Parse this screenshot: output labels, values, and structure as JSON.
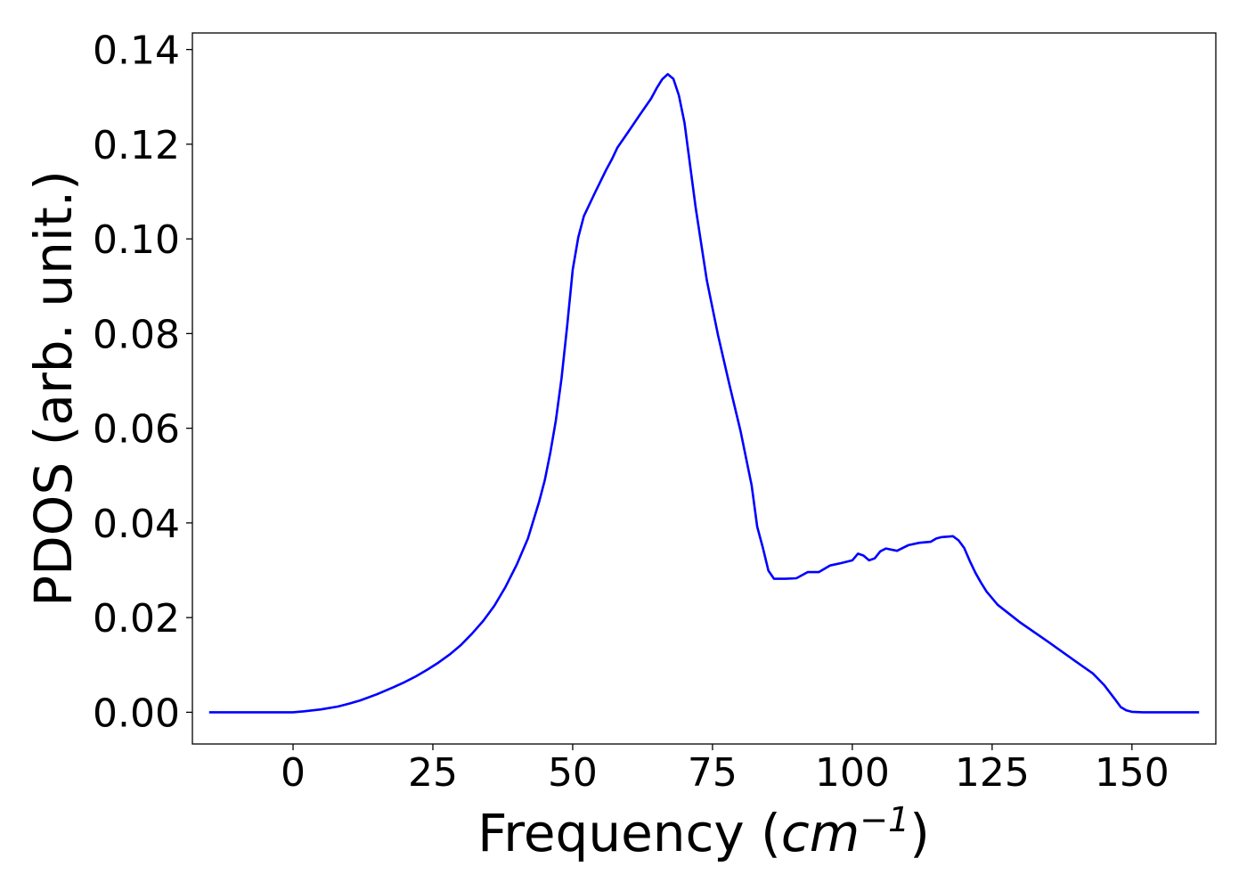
{
  "chart_data": {
    "type": "line",
    "title": "",
    "xlabel": "Frequency",
    "xlabel_unit_base": "cm",
    "xlabel_unit_exp": "−1",
    "ylabel": "PDOS (arb. unit.)",
    "xlim": [
      -18,
      165
    ],
    "ylim": [
      -0.0067,
      0.1435
    ],
    "xticks": [
      0,
      25,
      50,
      75,
      100,
      125,
      150
    ],
    "xtick_labels": [
      "0",
      "25",
      "50",
      "75",
      "100",
      "125",
      "150"
    ],
    "yticks": [
      0,
      0.02,
      0.04,
      0.06,
      0.08,
      0.1,
      0.12,
      0.14
    ],
    "ytick_labels": [
      "0.00",
      "0.02",
      "0.04",
      "0.06",
      "0.08",
      "0.10",
      "0.12",
      "0.14"
    ],
    "grid": false,
    "series": [
      {
        "color": "#0000ff",
        "x": [
          -15,
          0,
          2,
          5,
          8,
          10,
          12,
          15,
          18,
          20,
          22,
          24,
          26,
          28,
          30,
          32,
          34,
          36,
          38,
          40,
          42,
          44,
          45,
          46,
          47,
          48,
          49,
          50,
          51,
          52,
          54,
          56,
          57,
          58,
          60,
          62,
          64,
          65,
          66,
          67,
          68,
          69,
          70,
          72,
          74,
          76,
          78,
          80,
          82,
          83,
          84,
          85,
          86,
          88,
          90,
          92,
          94,
          96,
          98,
          100,
          101,
          102,
          103,
          104,
          105,
          106,
          108,
          110,
          112,
          114,
          115,
          116,
          118,
          119,
          120,
          121,
          122,
          123,
          124,
          126,
          130,
          135,
          140,
          143,
          145,
          147,
          148,
          149,
          150,
          152,
          155,
          162
        ],
        "y": [
          0,
          0,
          0.0002,
          0.0006,
          0.0012,
          0.0018,
          0.0025,
          0.0038,
          0.0053,
          0.0064,
          0.0076,
          0.009,
          0.0105,
          0.0122,
          0.0142,
          0.0166,
          0.0193,
          0.0225,
          0.0265,
          0.0312,
          0.0367,
          0.0445,
          0.049,
          0.0548,
          0.0617,
          0.0705,
          0.0815,
          0.0935,
          0.1003,
          0.1048,
          0.1098,
          0.1146,
          0.1168,
          0.1193,
          0.1227,
          0.1262,
          0.1296,
          0.1318,
          0.1337,
          0.1348,
          0.1338,
          0.1303,
          0.1245,
          0.1065,
          0.0912,
          0.0796,
          0.0693,
          0.0595,
          0.0479,
          0.0392,
          0.0348,
          0.0299,
          0.0282,
          0.0282,
          0.0283,
          0.0296,
          0.0296,
          0.031,
          0.0315,
          0.0321,
          0.0335,
          0.0331,
          0.0321,
          0.0325,
          0.034,
          0.0346,
          0.0341,
          0.0353,
          0.0358,
          0.036,
          0.0367,
          0.037,
          0.0372,
          0.0363,
          0.0347,
          0.032,
          0.0295,
          0.0274,
          0.0255,
          0.0227,
          0.019,
          0.0149,
          0.0107,
          0.0082,
          0.0058,
          0.0027,
          0.0011,
          0.0004,
          0.0001,
          0,
          0,
          0
        ]
      }
    ]
  }
}
